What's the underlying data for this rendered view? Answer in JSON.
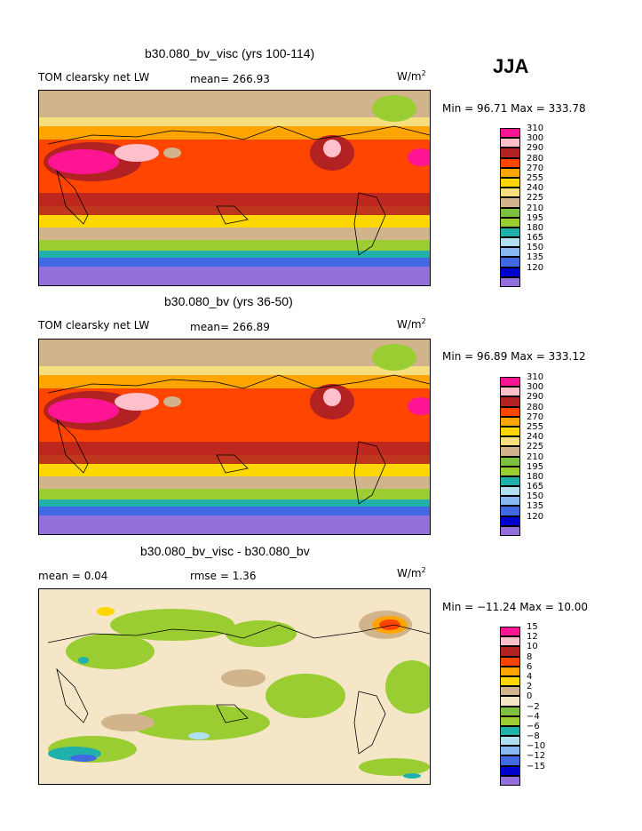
{
  "season_label": "JJA",
  "colors": {
    "full": [
      "#9370db",
      "#0000cd",
      "#4169e1",
      "#87b8f0",
      "#b0e0f0",
      "#20b2aa",
      "#9acd32",
      "#7cc240",
      "#d2b48c",
      "#f5de7e",
      "#ffd700",
      "#ffa500",
      "#ff4500",
      "#b22222",
      "#ffc0cb",
      "#ff1493"
    ],
    "diff": [
      "#9370db",
      "#0000cd",
      "#4169e1",
      "#87b8f0",
      "#b0e0f0",
      "#20b2aa",
      "#9acd32",
      "#7cc240",
      "#f5e6c8",
      "#d2b48c",
      "#ffd700",
      "#ffa500",
      "#ff4500",
      "#b22222",
      "#ffc0cb",
      "#ff1493"
    ]
  },
  "panels": [
    {
      "title": "b30.080_bv_visc (yrs 100-114)",
      "left_label": "TOM clearsky net LW",
      "mean_text": "mean= 266.93",
      "units_base": "W/m",
      "units_sup": "2",
      "minmax_text": "Min =  96.71 Max = 333.78",
      "legend_levels": [
        "310",
        "300",
        "290",
        "280",
        "270",
        "255",
        "240",
        "225",
        "210",
        "195",
        "180",
        "165",
        "150",
        "135",
        "120"
      ]
    },
    {
      "title": "b30.080_bv (yrs 36-50)",
      "left_label": "TOM clearsky net LW",
      "mean_text": "mean= 266.89",
      "units_base": "W/m",
      "units_sup": "2",
      "minmax_text": "Min =  96.89 Max = 333.12",
      "legend_levels": [
        "310",
        "300",
        "290",
        "280",
        "270",
        "255",
        "240",
        "225",
        "210",
        "195",
        "180",
        "165",
        "150",
        "135",
        "120"
      ]
    },
    {
      "title": "b30.080_bv_visc - b30.080_bv",
      "left_label": "mean =    0.04",
      "mean_text": "rmse =    1.36",
      "units_base": "W/m",
      "units_sup": "2",
      "minmax_text": "Min = −11.24 Max =  10.00",
      "legend_levels": [
        "15",
        "12",
        "10",
        "8",
        "6",
        "4",
        "2",
        "0",
        "−2",
        "−4",
        "−6",
        "−8",
        "−10",
        "−12",
        "−15"
      ]
    }
  ],
  "chart_data": [
    {
      "type": "heatmap",
      "title": "b30.080_bv_visc (yrs 100-114)",
      "subtitle": "TOM clearsky net LW",
      "units": "W/m2",
      "mean": 266.93,
      "min": 96.71,
      "max": 333.78,
      "contour_levels": [
        120,
        135,
        150,
        165,
        180,
        195,
        210,
        225,
        240,
        255,
        270,
        280,
        290,
        300,
        310
      ]
    },
    {
      "type": "heatmap",
      "title": "b30.080_bv (yrs 36-50)",
      "subtitle": "TOM clearsky net LW",
      "units": "W/m2",
      "mean": 266.89,
      "min": 96.89,
      "max": 333.12,
      "contour_levels": [
        120,
        135,
        150,
        165,
        180,
        195,
        210,
        225,
        240,
        255,
        270,
        280,
        290,
        300,
        310
      ]
    },
    {
      "type": "heatmap",
      "title": "b30.080_bv_visc - b30.080_bv",
      "units": "W/m2",
      "mean": 0.04,
      "rmse": 1.36,
      "min": -11.24,
      "max": 10.0,
      "contour_levels": [
        -15,
        -12,
        -10,
        -8,
        -6,
        -4,
        -2,
        0,
        2,
        4,
        6,
        8,
        10,
        12,
        15
      ]
    }
  ]
}
